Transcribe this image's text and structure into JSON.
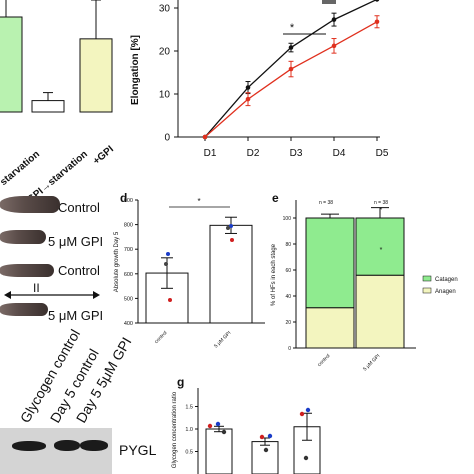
{
  "panel_a": {
    "x_labels": [
      "starvation",
      "GPI→starvation",
      "+GPI"
    ],
    "bars": [
      {
        "value": 100,
        "color": "#b9f2b0"
      },
      {
        "value": 12,
        "color": "#ffffff"
      },
      {
        "value": 77,
        "color": "#f3f5bf"
      }
    ]
  },
  "panel_b": {
    "chart_data": {
      "type": "line",
      "categories": [
        "D1",
        "D2",
        "D3",
        "D4",
        "D5"
      ],
      "ylabel": "Elongation [%]",
      "yticks": [
        "0",
        "10",
        "20",
        "30"
      ],
      "ylim": [
        0,
        30
      ],
      "series": [
        {
          "values": [
            0,
            11.5,
            20.8,
            27.3,
            32
          ],
          "color": "#111111"
        },
        {
          "values": [
            0,
            8.8,
            15.8,
            21.2,
            26.8
          ],
          "color": "#e0301e"
        }
      ],
      "significance": "*"
    }
  },
  "panel_c": {
    "labels": [
      "Control",
      "5 μM GPI",
      "Control",
      "II",
      "5 μM GPI"
    ]
  },
  "panel_d": {
    "letter": "d",
    "chart_data": {
      "type": "bar",
      "categories": [
        "control",
        "5 μM GPI"
      ],
      "values": [
        603,
        797
      ],
      "errors": [
        62,
        33
      ],
      "ylabel": "Absolute growth Day 5",
      "yticks": [
        "400",
        "500",
        "600",
        "700",
        "800",
        "900"
      ],
      "ylim": [
        400,
        900
      ],
      "significance": "*"
    }
  },
  "panel_e": {
    "letter": "e",
    "chart_data": {
      "type": "bar",
      "categories": [
        "control",
        "5 μM GPI"
      ],
      "n_labels": [
        "n = 38",
        "n = 38"
      ],
      "ylabel": "% of HFs in each stage",
      "yticks": [
        "0",
        "20",
        "40",
        "60",
        "80",
        "100"
      ],
      "ylim": [
        0,
        120
      ],
      "series": [
        {
          "name": "Anagen",
          "values": [
            31,
            56
          ],
          "errors": [
            4,
            8
          ],
          "color": "#f3f5bf"
        },
        {
          "name": "Catagen",
          "values": [
            69,
            44
          ],
          "errors": [
            3,
            8
          ],
          "color": "#8feb8f"
        }
      ],
      "significance": "*"
    }
  },
  "panel_f": {
    "headers": [
      "Glycogen control",
      "Day 5 control",
      "Day 5 5μM GPI"
    ],
    "band_label": "PYGL"
  },
  "panel_g": {
    "letter": "g",
    "chart_data": {
      "type": "bar",
      "ylabel": "Glycogen concentration ratio",
      "yticks": [
        "1.5",
        "1.0",
        "0.5"
      ],
      "values": [
        1.0,
        0.72,
        1.05
      ],
      "errors": [
        0.06,
        0.08,
        0.3
      ]
    }
  }
}
